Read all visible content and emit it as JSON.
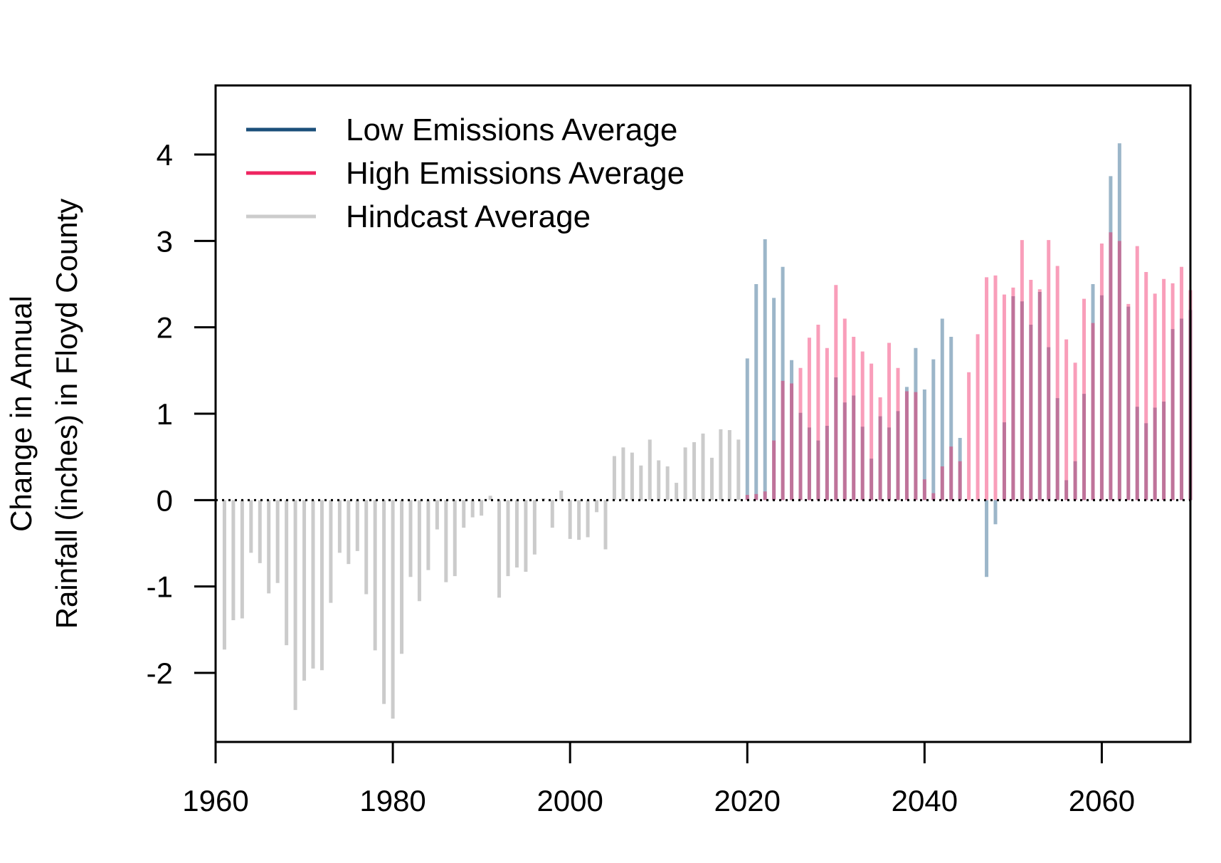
{
  "chart_data": {
    "type": "bar",
    "xlabel": "",
    "ylabel_lines": [
      "Change in Annual",
      "Rainfall (inches) in Floyd County"
    ],
    "xlim": [
      1960,
      2070
    ],
    "ylim": [
      -2.8,
      4.8
    ],
    "x_ticks": [
      1960,
      1980,
      2000,
      2020,
      2040,
      2060
    ],
    "y_ticks": [
      -2,
      -1,
      0,
      1,
      2,
      3,
      4
    ],
    "grid": false,
    "legend_position": "top-left",
    "zero_line": "dotted",
    "series": [
      {
        "name": "Low Emissions Average",
        "color": "#13507e",
        "legend_color": "#1b4f7a",
        "x": [
          2020,
          2021,
          2022,
          2023,
          2024,
          2025,
          2026,
          2027,
          2028,
          2029,
          2030,
          2031,
          2032,
          2033,
          2034,
          2035,
          2036,
          2037,
          2038,
          2039,
          2040,
          2041,
          2042,
          2043,
          2044,
          2045,
          2046,
          2047,
          2048,
          2049,
          2050,
          2051,
          2052,
          2053,
          2054,
          2055,
          2056,
          2057,
          2058,
          2059,
          2060,
          2061,
          2062,
          2063,
          2064,
          2065,
          2066,
          2067,
          2068,
          2069,
          2070
        ],
        "values": [
          1.64,
          2.5,
          3.02,
          2.34,
          2.7,
          1.62,
          1.01,
          0.84,
          0.69,
          0.86,
          1.42,
          1.13,
          1.21,
          0.85,
          0.48,
          0.97,
          0.84,
          1.03,
          1.31,
          1.76,
          1.28,
          1.63,
          2.1,
          1.89,
          0.72,
          0.0,
          0.0,
          -0.89,
          -0.28,
          0.9,
          2.36,
          2.3,
          2.03,
          2.41,
          1.77,
          1.18,
          0.23,
          0.45,
          1.23,
          2.5,
          2.37,
          3.75,
          4.13,
          2.24,
          1.08,
          0.89,
          1.07,
          1.14,
          1.98,
          2.1,
          2.2
        ]
      },
      {
        "name": "High Emissions Average",
        "color": "#f0195a",
        "legend_color": "#ee2560",
        "x": [
          2020,
          2021,
          2022,
          2023,
          2024,
          2025,
          2026,
          2027,
          2028,
          2029,
          2030,
          2031,
          2032,
          2033,
          2034,
          2035,
          2036,
          2037,
          2038,
          2039,
          2040,
          2041,
          2042,
          2043,
          2044,
          2045,
          2046,
          2047,
          2048,
          2049,
          2050,
          2051,
          2052,
          2053,
          2054,
          2055,
          2056,
          2057,
          2058,
          2059,
          2060,
          2061,
          2062,
          2063,
          2064,
          2065,
          2066,
          2067,
          2068,
          2069,
          2070
        ],
        "values": [
          0.06,
          0.07,
          0.1,
          0.69,
          1.38,
          1.35,
          1.53,
          1.88,
          2.03,
          1.76,
          2.49,
          2.1,
          1.89,
          1.72,
          1.58,
          1.19,
          1.82,
          1.53,
          1.26,
          1.25,
          0.24,
          0.08,
          0.39,
          0.62,
          0.45,
          1.48,
          1.92,
          2.58,
          2.6,
          2.38,
          2.46,
          3.01,
          2.55,
          2.44,
          3.01,
          2.71,
          1.86,
          1.59,
          2.33,
          2.05,
          2.97,
          3.1,
          3.0,
          2.27,
          2.94,
          2.64,
          2.39,
          2.56,
          2.51,
          2.7,
          2.43
        ]
      },
      {
        "name": "Hindcast Average",
        "color": "#b5b5b5",
        "legend_color": "#cccccc",
        "x": [
          1961,
          1962,
          1963,
          1964,
          1965,
          1966,
          1967,
          1968,
          1969,
          1970,
          1971,
          1972,
          1973,
          1974,
          1975,
          1976,
          1977,
          1978,
          1979,
          1980,
          1981,
          1982,
          1983,
          1984,
          1985,
          1986,
          1987,
          1988,
          1989,
          1990,
          1991,
          1992,
          1993,
          1994,
          1995,
          1996,
          1997,
          1998,
          1999,
          2000,
          2001,
          2002,
          2003,
          2004,
          2005,
          2006,
          2007,
          2008,
          2009,
          2010,
          2011,
          2012,
          2013,
          2014,
          2015,
          2016,
          2017,
          2018,
          2019
        ],
        "values": [
          -1.73,
          -1.39,
          -1.37,
          -0.61,
          -0.73,
          -1.08,
          -0.96,
          -1.68,
          -2.43,
          -2.09,
          -1.95,
          -1.97,
          -1.19,
          -0.61,
          -0.74,
          -0.59,
          -1.09,
          -1.74,
          -2.36,
          -2.53,
          -1.78,
          -0.89,
          -1.17,
          -0.81,
          -0.34,
          -0.95,
          -0.88,
          -0.32,
          -0.2,
          -0.18,
          0.05,
          -1.13,
          -0.88,
          -0.78,
          -0.83,
          -0.63,
          0.02,
          -0.32,
          0.11,
          -0.45,
          -0.46,
          -0.43,
          -0.14,
          -0.57,
          0.51,
          0.61,
          0.55,
          0.4,
          0.7,
          0.46,
          0.39,
          0.2,
          0.61,
          0.67,
          0.77,
          0.49,
          0.82,
          0.81,
          0.7
        ]
      }
    ]
  }
}
